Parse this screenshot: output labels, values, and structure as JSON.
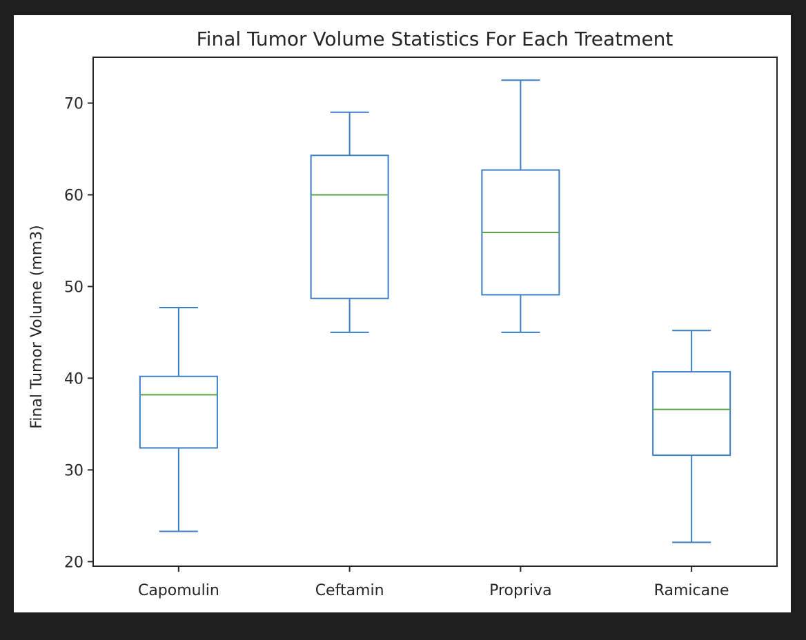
{
  "chart_data": {
    "type": "box",
    "title": "Final Tumor Volume Statistics For Each Treatment",
    "xlabel": "",
    "ylabel": "Final Tumor Volume (mm3)",
    "ylim": [
      19.5,
      75
    ],
    "yticks": [
      20,
      30,
      40,
      50,
      60,
      70
    ],
    "grid": false,
    "categories": [
      "Capomulin",
      "Ceftamin",
      "Propriva",
      "Ramicane"
    ],
    "boxes": [
      {
        "whisker_low": 23.3,
        "q1": 32.4,
        "median": 38.2,
        "q3": 40.2,
        "whisker_high": 47.7
      },
      {
        "whisker_low": 45.0,
        "q1": 48.7,
        "median": 60.0,
        "q3": 64.3,
        "whisker_high": 69.0
      },
      {
        "whisker_low": 45.0,
        "q1": 49.1,
        "median": 55.9,
        "q3": 62.7,
        "whisker_high": 72.5
      },
      {
        "whisker_low": 22.1,
        "q1": 31.6,
        "median": 36.6,
        "q3": 40.7,
        "whisker_high": 45.2
      }
    ],
    "colors": {
      "box": "#3d7fc4",
      "median": "#56a544",
      "axis": "#262626"
    }
  }
}
